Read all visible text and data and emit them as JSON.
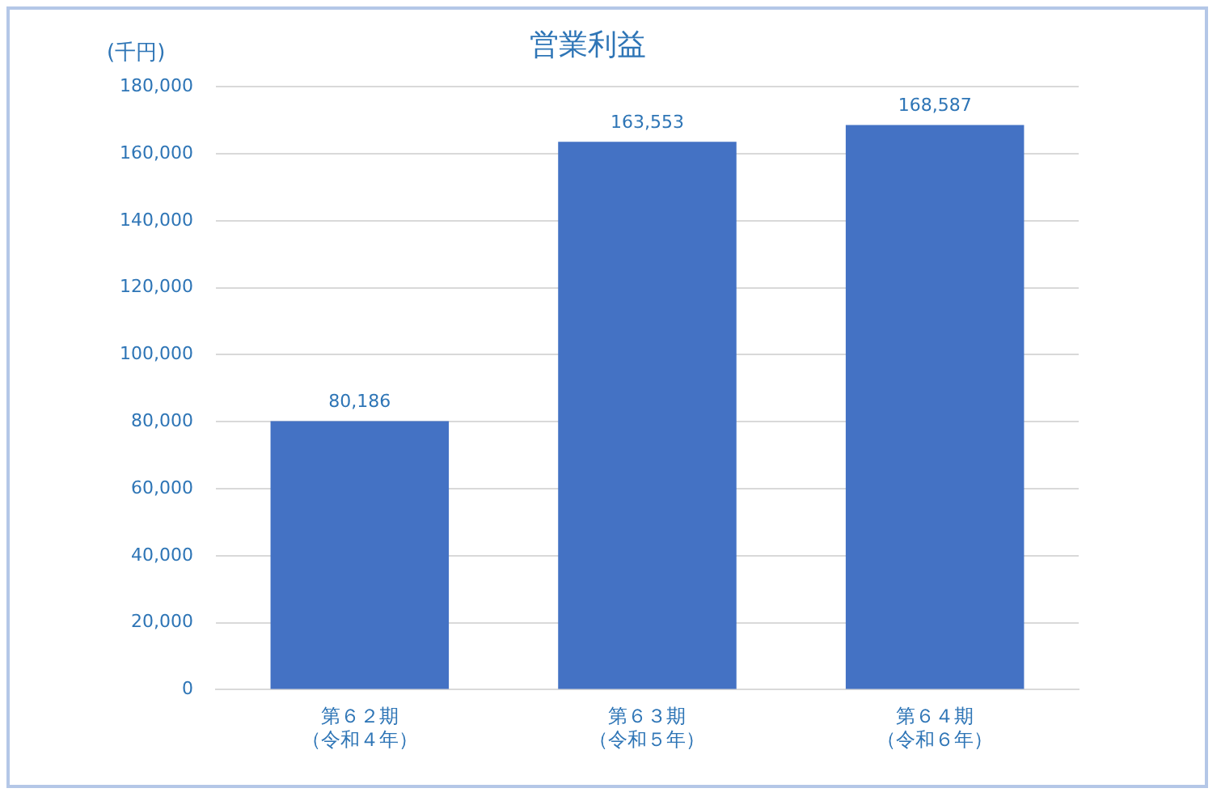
{
  "chart_data": {
    "type": "bar",
    "title": "営業利益",
    "ylabel": "(千円)",
    "categories": [
      "第６２期（令和４年）",
      "第６３期（令和５年）",
      "第６４期（令和６年）"
    ],
    "values": [
      80186,
      163553,
      168587
    ],
    "color": "#4472c4",
    "value_labels": [
      "80,186",
      "163,553",
      "168,587"
    ],
    "ylim": [
      0,
      180000
    ],
    "yticks": [
      0,
      {
        "value": 20000,
        "label": "20,000"
      },
      {
        "value": 40000,
        "label": "40,000"
      },
      {
        "value": 60000,
        "label": "60,000"
      },
      {
        "value": 80000,
        "label": "80,000"
      },
      {
        "value": 100000,
        "label": "100,000"
      },
      {
        "value": 120000,
        "label": "120,000"
      },
      {
        "value": 140000,
        "label": "140,000"
      },
      {
        "value": 160000,
        "label": "160,000"
      },
      {
        "value": 180000,
        "label": "180,000"
      }
    ],
    "grid": "y"
  }
}
